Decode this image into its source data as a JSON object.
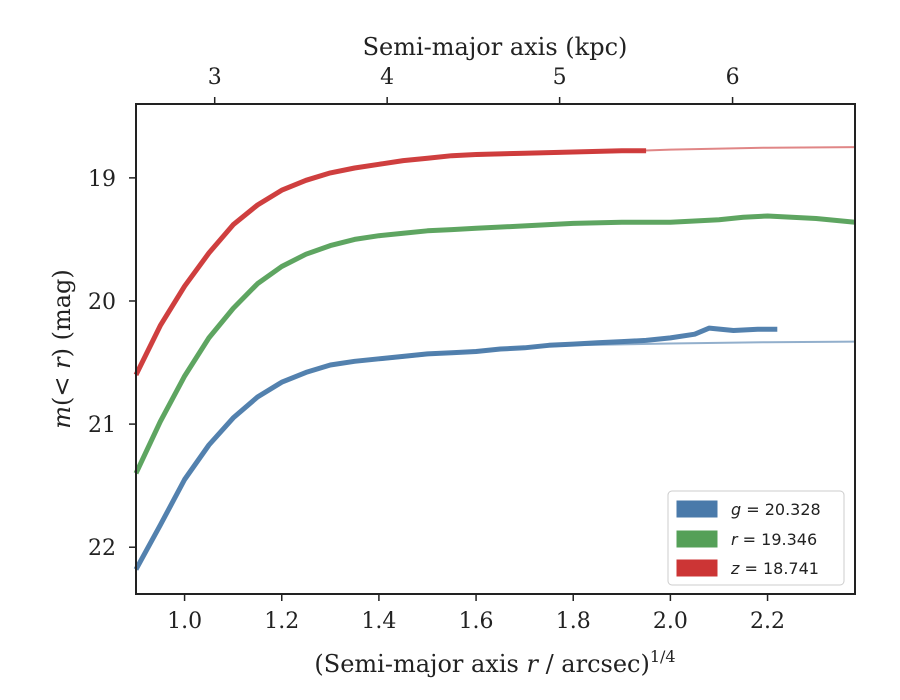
{
  "chart_data": {
    "type": "line",
    "x_axis": {
      "label_prefix": "(Semi-major axis ",
      "label_var": "r",
      "label_suffix": " / arcsec)",
      "label_exp": "1/4",
      "range": [
        0.9,
        2.38
      ],
      "ticks": [
        1.0,
        1.2,
        1.4,
        1.6,
        1.8,
        2.0,
        2.2
      ],
      "tick_labels": [
        "1.0",
        "1.2",
        "1.4",
        "1.6",
        "1.8",
        "2.0",
        "2.2"
      ]
    },
    "x2_axis": {
      "label": "Semi-major axis (kpc)",
      "ticks": [
        3,
        4,
        5,
        6
      ],
      "tick_labels": [
        "3",
        "4",
        "5",
        "6"
      ],
      "tick_positions_x": [
        1.062,
        1.417,
        1.772,
        2.128
      ]
    },
    "y_axis": {
      "label_var": "m",
      "label_mid": "(< ",
      "label_var2": "r",
      "label_end": ") (mag)",
      "range": [
        18.4,
        22.38
      ],
      "inverted": true,
      "ticks": [
        19,
        20,
        21,
        22
      ],
      "tick_labels": [
        "19",
        "20",
        "21",
        "22"
      ]
    },
    "legend": {
      "position": "lower-right",
      "entries": [
        {
          "var": "g",
          "text": " = 20.328",
          "color": "#4a7aaa"
        },
        {
          "var": "r",
          "text": " = 19.346",
          "color": "#55a058"
        },
        {
          "var": "z",
          "text": " = 18.741",
          "color": "#cc3535"
        }
      ]
    },
    "series": [
      {
        "key": "g",
        "color": "#4a7aaa",
        "x": [
          0.9,
          0.95,
          1.0,
          1.05,
          1.1,
          1.15,
          1.2,
          1.25,
          1.3,
          1.35,
          1.4,
          1.45,
          1.5,
          1.55,
          1.6,
          1.65,
          1.7,
          1.75,
          1.8,
          1.85,
          1.9,
          1.95,
          2.0,
          2.05,
          2.08,
          2.13,
          2.18,
          2.22
        ],
        "y": [
          22.18,
          21.82,
          21.45,
          21.17,
          20.95,
          20.78,
          20.66,
          20.58,
          20.52,
          20.49,
          20.47,
          20.45,
          20.43,
          20.42,
          20.41,
          20.39,
          20.38,
          20.36,
          20.35,
          20.34,
          20.33,
          20.32,
          20.3,
          20.27,
          20.22,
          20.24,
          20.23,
          20.23
        ],
        "model_x": [
          1.4,
          1.6,
          1.8,
          2.0,
          2.2,
          2.38
        ],
        "model_y": [
          20.48,
          20.4,
          20.36,
          20.345,
          20.335,
          20.33
        ]
      },
      {
        "key": "r",
        "color": "#55a058",
        "x": [
          0.9,
          0.95,
          1.0,
          1.05,
          1.1,
          1.15,
          1.2,
          1.25,
          1.3,
          1.35,
          1.4,
          1.45,
          1.5,
          1.55,
          1.6,
          1.7,
          1.8,
          1.9,
          2.0,
          2.05,
          2.1,
          2.15,
          2.2,
          2.25,
          2.3,
          2.38
        ],
        "y": [
          21.4,
          20.98,
          20.61,
          20.3,
          20.06,
          19.86,
          19.72,
          19.62,
          19.55,
          19.5,
          19.47,
          19.45,
          19.43,
          19.42,
          19.41,
          19.39,
          19.37,
          19.36,
          19.36,
          19.35,
          19.34,
          19.32,
          19.31,
          19.32,
          19.33,
          19.36
        ]
      },
      {
        "key": "z",
        "color": "#cc3535",
        "x": [
          0.9,
          0.95,
          1.0,
          1.05,
          1.1,
          1.15,
          1.2,
          1.25,
          1.3,
          1.35,
          1.4,
          1.45,
          1.5,
          1.55,
          1.6,
          1.7,
          1.8,
          1.9,
          1.95
        ],
        "y": [
          20.6,
          20.2,
          19.88,
          19.61,
          19.38,
          19.22,
          19.1,
          19.02,
          18.96,
          18.92,
          18.89,
          18.86,
          18.84,
          18.82,
          18.81,
          18.8,
          18.79,
          18.78,
          18.78
        ],
        "model_x": [
          1.6,
          1.8,
          2.0,
          2.2,
          2.38
        ],
        "model_y": [
          18.82,
          18.8,
          18.77,
          18.755,
          18.75
        ]
      }
    ]
  }
}
